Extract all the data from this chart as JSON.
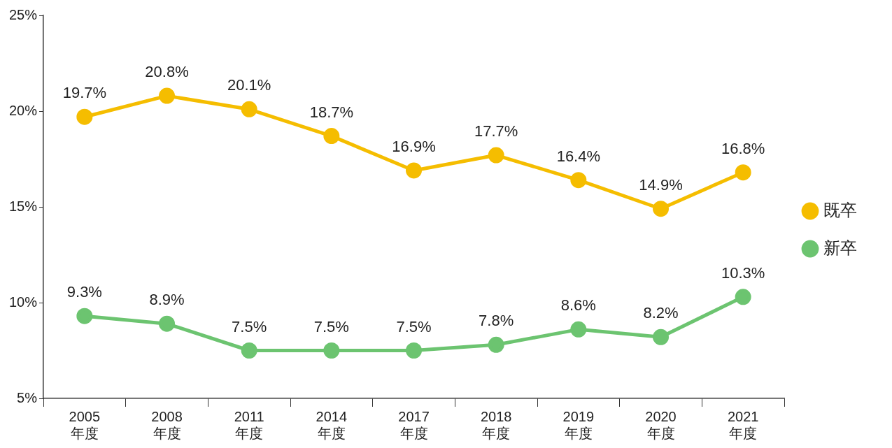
{
  "chart_data": {
    "type": "line",
    "categories": [
      "2005\n年度",
      "2008\n年度",
      "2011\n年度",
      "2014\n年度",
      "2017\n年度",
      "2018\n年度",
      "2019\n年度",
      "2020\n年度",
      "2021\n年度"
    ],
    "series": [
      {
        "name": "既卒",
        "color": "#f5bd00",
        "values": [
          19.7,
          20.8,
          20.1,
          18.7,
          16.9,
          17.7,
          16.4,
          14.9,
          16.8
        ],
        "value_labels": [
          "19.7%",
          "20.8%",
          "20.1%",
          "18.7%",
          "16.9%",
          "17.7%",
          "16.4%",
          "14.9%",
          "16.8%"
        ]
      },
      {
        "name": "新卒",
        "color": "#6cc470",
        "values": [
          9.3,
          8.9,
          7.5,
          7.5,
          7.5,
          7.8,
          8.6,
          8.2,
          10.3
        ],
        "value_labels": [
          "9.3%",
          "8.9%",
          "7.5%",
          "7.5%",
          "7.5%",
          "7.8%",
          "8.6%",
          "8.2%",
          "10.3%"
        ]
      }
    ],
    "ylim": [
      5,
      25
    ],
    "yticks": [
      {
        "value": 5,
        "label": "5%"
      },
      {
        "value": 10,
        "label": "10%"
      },
      {
        "value": 15,
        "label": "15%"
      },
      {
        "value": 20,
        "label": "20%"
      },
      {
        "value": 25,
        "label": "25%"
      }
    ],
    "grid": false,
    "legend": "right",
    "marker": "circle",
    "line_style": "solid"
  }
}
